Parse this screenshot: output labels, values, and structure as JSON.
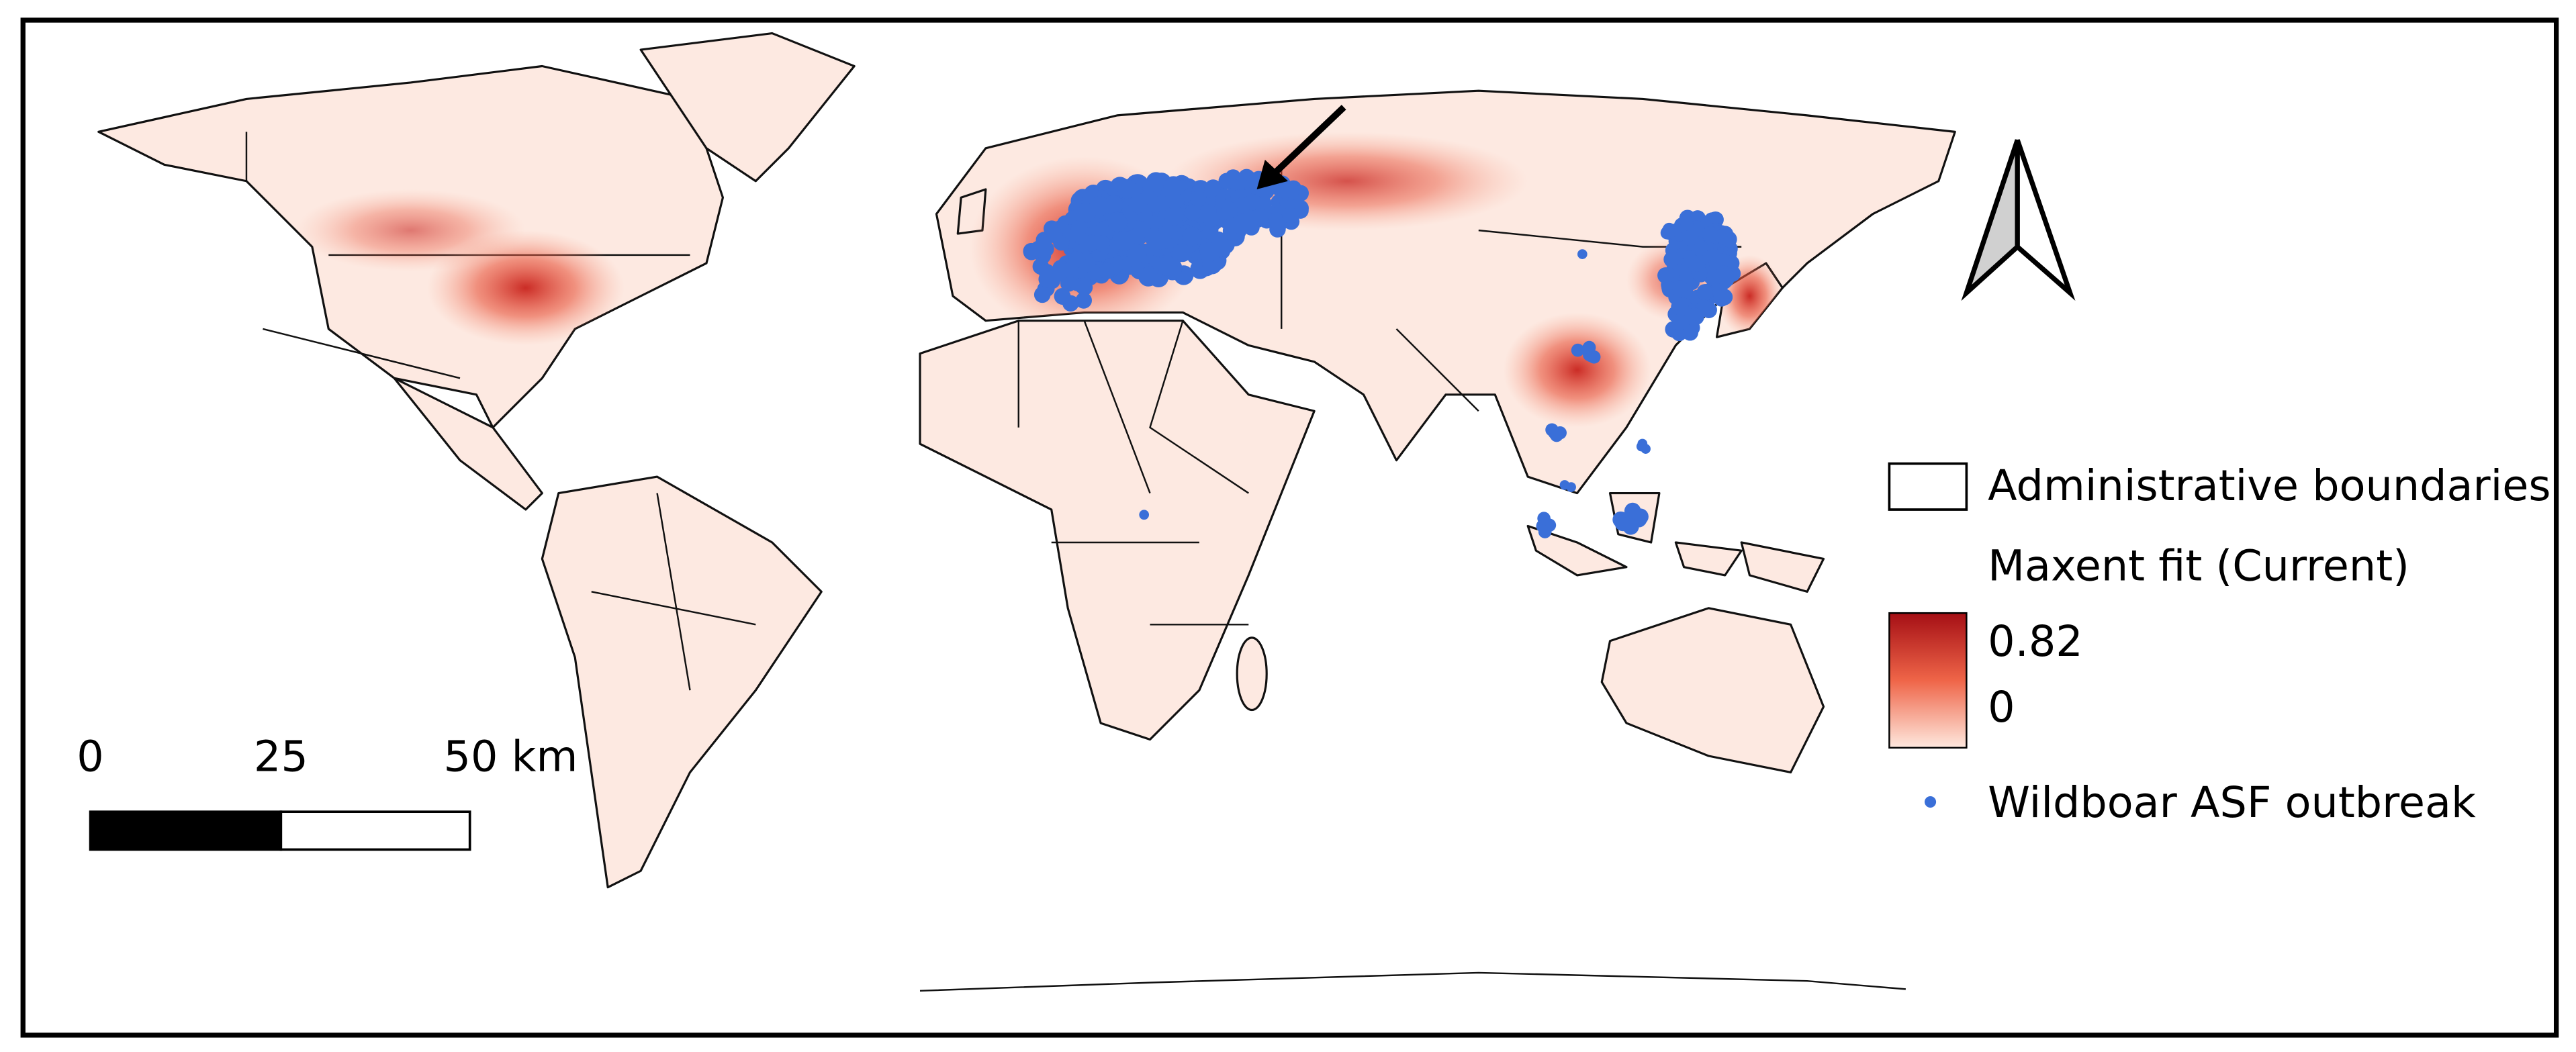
{
  "legend": {
    "boundaries": "Administrative boundaries",
    "fit_title": "Maxent fit (Current)",
    "ramp_max": "0.82",
    "ramp_min": "0",
    "outbreak": "Wildboar ASF outbreak"
  },
  "scale_bar": {
    "labels": [
      "0",
      "25",
      "50 km"
    ]
  }
}
